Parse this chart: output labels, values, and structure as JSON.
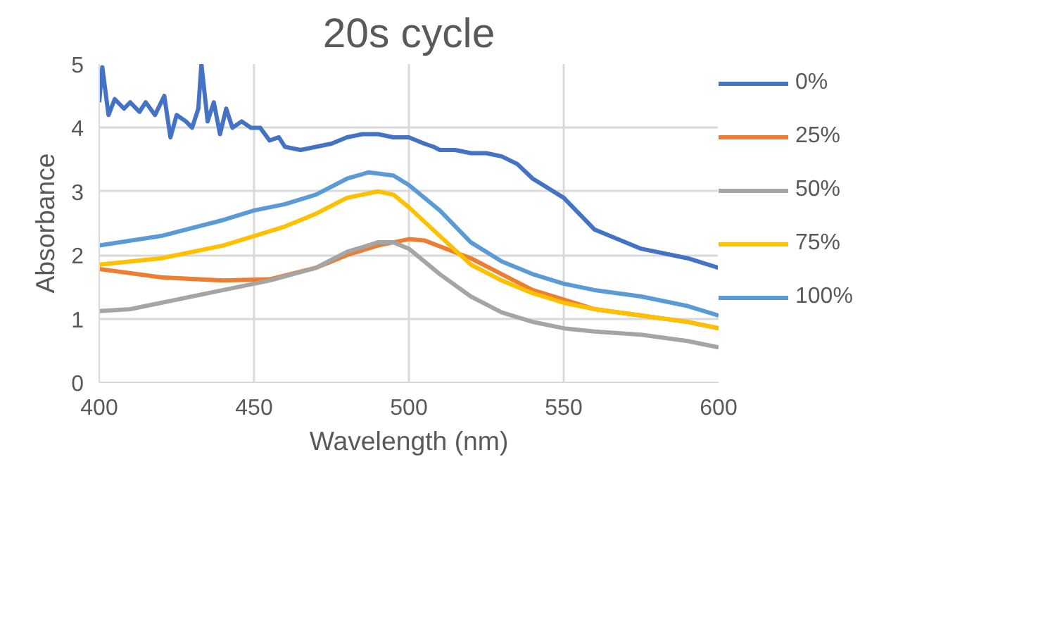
{
  "chart_data": {
    "type": "line",
    "title": "20s cycle",
    "xlabel": "Wavelength (nm)",
    "ylabel": "Absorbance",
    "xlim": [
      400,
      600
    ],
    "xticks": [
      400,
      450,
      500,
      550,
      600
    ],
    "ylim": [
      0,
      5
    ],
    "yticks": [
      0,
      1,
      2,
      3,
      4,
      5
    ],
    "grid": true,
    "legend": "right",
    "marker": "none",
    "line_style": "solid",
    "series": [
      {
        "name": "0%",
        "color": "#4472c4",
        "x": [
          400,
          401,
          403,
          405,
          408,
          410,
          413,
          415,
          418,
          421,
          423,
          425,
          428,
          430,
          432,
          433,
          435,
          437,
          439,
          441,
          443,
          446,
          449,
          452,
          455,
          458,
          460,
          465,
          470,
          475,
          480,
          485,
          490,
          495,
          500,
          505,
          508,
          510,
          515,
          520,
          525,
          530,
          535,
          540,
          550,
          560,
          575,
          590,
          600
        ],
        "values": [
          4.4,
          4.95,
          4.2,
          4.45,
          4.3,
          4.4,
          4.25,
          4.4,
          4.2,
          4.5,
          3.85,
          4.2,
          4.1,
          4.0,
          4.3,
          5.0,
          4.1,
          4.4,
          3.9,
          4.3,
          4.0,
          4.1,
          4.0,
          4.0,
          3.8,
          3.85,
          3.7,
          3.65,
          3.7,
          3.75,
          3.85,
          3.9,
          3.9,
          3.85,
          3.85,
          3.75,
          3.7,
          3.65,
          3.65,
          3.6,
          3.6,
          3.55,
          3.43,
          3.2,
          2.9,
          2.4,
          2.1,
          1.95,
          1.8
        ]
      },
      {
        "name": "25%",
        "color": "#ed7d31",
        "x": [
          400,
          420,
          440,
          455,
          470,
          480,
          490,
          500,
          505,
          520,
          530,
          540,
          550,
          560,
          575,
          590,
          600
        ],
        "values": [
          1.78,
          1.65,
          1.6,
          1.62,
          1.8,
          2.0,
          2.15,
          2.25,
          2.23,
          1.95,
          1.7,
          1.45,
          1.3,
          1.15,
          1.05,
          0.95,
          0.85
        ]
      },
      {
        "name": "50%",
        "color": "#a5a5a5",
        "x": [
          400,
          410,
          420,
          440,
          455,
          470,
          480,
          490,
          495,
          500,
          510,
          520,
          530,
          540,
          550,
          560,
          575,
          590,
          600
        ],
        "values": [
          1.12,
          1.15,
          1.25,
          1.45,
          1.6,
          1.8,
          2.05,
          2.2,
          2.2,
          2.1,
          1.7,
          1.35,
          1.1,
          0.95,
          0.85,
          0.8,
          0.75,
          0.65,
          0.55
        ]
      },
      {
        "name": "75%",
        "color": "#ffc000",
        "x": [
          400,
          420,
          440,
          450,
          460,
          470,
          480,
          490,
          495,
          500,
          510,
          520,
          530,
          540,
          550,
          560,
          575,
          590,
          600
        ],
        "values": [
          1.85,
          1.95,
          2.15,
          2.3,
          2.45,
          2.65,
          2.9,
          3.0,
          2.95,
          2.75,
          2.3,
          1.85,
          1.6,
          1.4,
          1.25,
          1.15,
          1.05,
          0.95,
          0.85
        ]
      },
      {
        "name": "100%",
        "color": "#5b9bd5",
        "x": [
          400,
          420,
          440,
          450,
          460,
          470,
          480,
          487,
          495,
          500,
          510,
          520,
          530,
          540,
          550,
          560,
          575,
          590,
          600
        ],
        "values": [
          2.15,
          2.3,
          2.55,
          2.7,
          2.8,
          2.95,
          3.2,
          3.3,
          3.25,
          3.1,
          2.7,
          2.2,
          1.9,
          1.7,
          1.55,
          1.45,
          1.35,
          1.2,
          1.05
        ]
      }
    ]
  }
}
